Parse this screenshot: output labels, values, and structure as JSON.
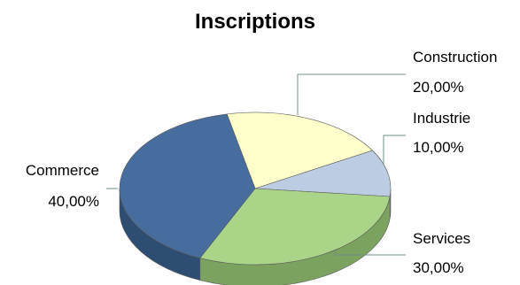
{
  "chart_data": {
    "type": "pie",
    "title": "Inscriptions",
    "slices": [
      {
        "label": "Construction",
        "value": 20,
        "display": "20,00%",
        "color": "#ffffcc",
        "side": "#cccc99"
      },
      {
        "label": "Industrie",
        "value": 10,
        "display": "10,00%",
        "color": "#bccde3",
        "side": "#8f9fb6"
      },
      {
        "label": "Services",
        "value": 30,
        "display": "30,00%",
        "color": "#aad488",
        "side": "#7ba25f"
      },
      {
        "label": "Commerce",
        "value": 40,
        "display": "40,00%",
        "color": "#466d9e",
        "side": "#2e4d73"
      }
    ],
    "legend": "none",
    "grid": false,
    "style": "3d"
  }
}
